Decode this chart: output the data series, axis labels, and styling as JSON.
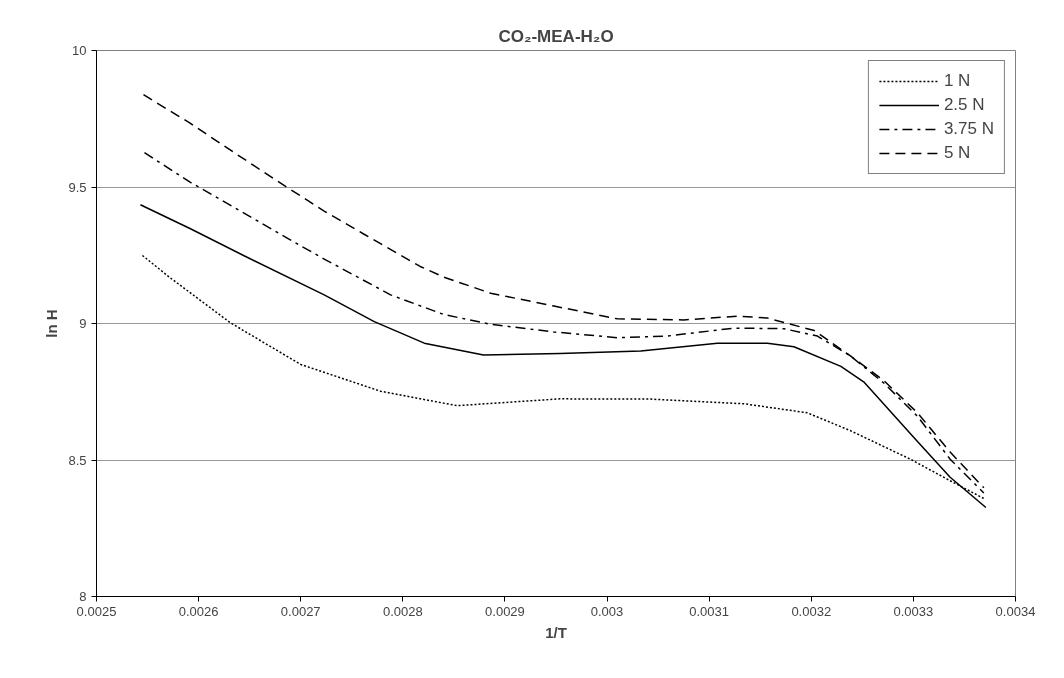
{
  "chart_data": {
    "type": "line",
    "title": "CO₂-MEA-H₂O",
    "xlabel": "1/T",
    "ylabel": "ln H",
    "xlim": [
      0.0025,
      0.0034
    ],
    "xticks": [
      0.0025,
      0.0026,
      0.0027,
      0.0028,
      0.0029,
      0.003,
      0.0031,
      0.0032,
      0.0033,
      0.0034
    ],
    "ylim": [
      8,
      10
    ],
    "yticks": [
      8,
      8.5,
      9,
      9.5,
      10
    ],
    "grid": "y",
    "legend": "top right",
    "marker": "none",
    "series": [
      {
        "name": "1 N",
        "color": "#000000",
        "line_style": "dotted",
        "x": [
          0.002545,
          0.002572,
          0.002631,
          0.0027,
          0.002778,
          0.002853,
          0.002954,
          0.003043,
          0.003134,
          0.003196,
          0.003238,
          0.003297,
          0.003336,
          0.003369
        ],
        "values": [
          9.249,
          9.168,
          9.003,
          8.85,
          8.752,
          8.699,
          8.724,
          8.723,
          8.706,
          8.673,
          8.608,
          8.503,
          8.424,
          8.359
        ]
      },
      {
        "name": "2.5 N",
        "color": "#000000",
        "line_style": "solid",
        "x": [
          0.002543,
          0.002592,
          0.002644,
          0.002723,
          0.002772,
          0.002821,
          0.002879,
          0.002954,
          0.003033,
          0.003108,
          0.003157,
          0.003183,
          0.003229,
          0.003252,
          0.003304,
          0.003336,
          0.003371
        ],
        "values": [
          9.435,
          9.347,
          9.249,
          9.105,
          9.007,
          8.928,
          8.885,
          8.89,
          8.899,
          8.928,
          8.928,
          8.915,
          8.843,
          8.784,
          8.568,
          8.437,
          8.326
        ]
      },
      {
        "name": "3.75 N",
        "color": "#000000",
        "line_style": "dashdot",
        "x": [
          0.002547,
          0.002592,
          0.002641,
          0.00268,
          0.002723,
          0.002788,
          0.00284,
          0.002886,
          0.002948,
          0.00301,
          0.003059,
          0.003124,
          0.003173,
          0.003206,
          0.003238,
          0.003271,
          0.003304,
          0.003336,
          0.003369
        ],
        "values": [
          9.626,
          9.517,
          9.412,
          9.327,
          9.236,
          9.105,
          9.033,
          8.997,
          8.969,
          8.948,
          8.954,
          8.983,
          8.981,
          8.954,
          8.882,
          8.782,
          8.66,
          8.503,
          8.379
        ]
      },
      {
        "name": "5 N",
        "color": "#000000",
        "line_style": "dashed",
        "x": [
          0.002546,
          0.002592,
          0.002634,
          0.002687,
          0.002723,
          0.002762,
          0.002817,
          0.00284,
          0.002886,
          0.002948,
          0.00301,
          0.003075,
          0.003128,
          0.003157,
          0.003203,
          0.003238,
          0.003271,
          0.003304,
          0.003336,
          0.003369
        ],
        "values": [
          9.838,
          9.733,
          9.628,
          9.498,
          9.412,
          9.327,
          9.209,
          9.17,
          9.111,
          9.064,
          9.017,
          9.013,
          9.027,
          9.02,
          8.974,
          8.882,
          8.791,
          8.673,
          8.529,
          8.398
        ]
      }
    ]
  }
}
